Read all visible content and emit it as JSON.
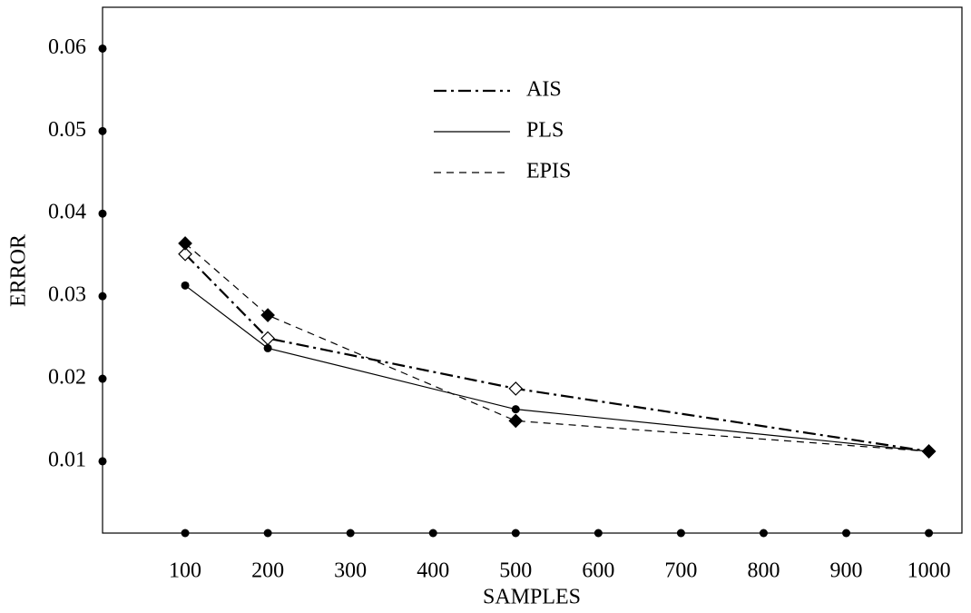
{
  "chart_data": {
    "type": "line",
    "x_label": "SAMPLES",
    "y_label": "ERROR",
    "x": [
      100,
      200,
      500,
      1000
    ],
    "xlim": [
      0,
      1040
    ],
    "xticks": [
      100,
      200,
      300,
      400,
      500,
      600,
      700,
      800,
      900,
      1000
    ],
    "ylim": [
      0.0013,
      0.065
    ],
    "yticks": [
      0.01,
      0.02,
      0.03,
      0.04,
      0.05,
      0.06
    ],
    "series": [
      {
        "name": "AIS",
        "color": "#000000",
        "dash": "dash-dot",
        "marker": "open-diamond",
        "values": [
          0.0351,
          0.0249,
          0.0188,
          0.0112
        ]
      },
      {
        "name": "PLS",
        "color": "#000000",
        "dash": "solid",
        "marker": "circle",
        "values": [
          0.0313,
          0.0237,
          0.0163,
          0.0112
        ]
      },
      {
        "name": "EPIS",
        "color": "#000000",
        "dash": "dashed",
        "marker": "filled-diamond",
        "values": [
          0.0364,
          0.0277,
          0.0149,
          0.0112
        ]
      }
    ]
  }
}
